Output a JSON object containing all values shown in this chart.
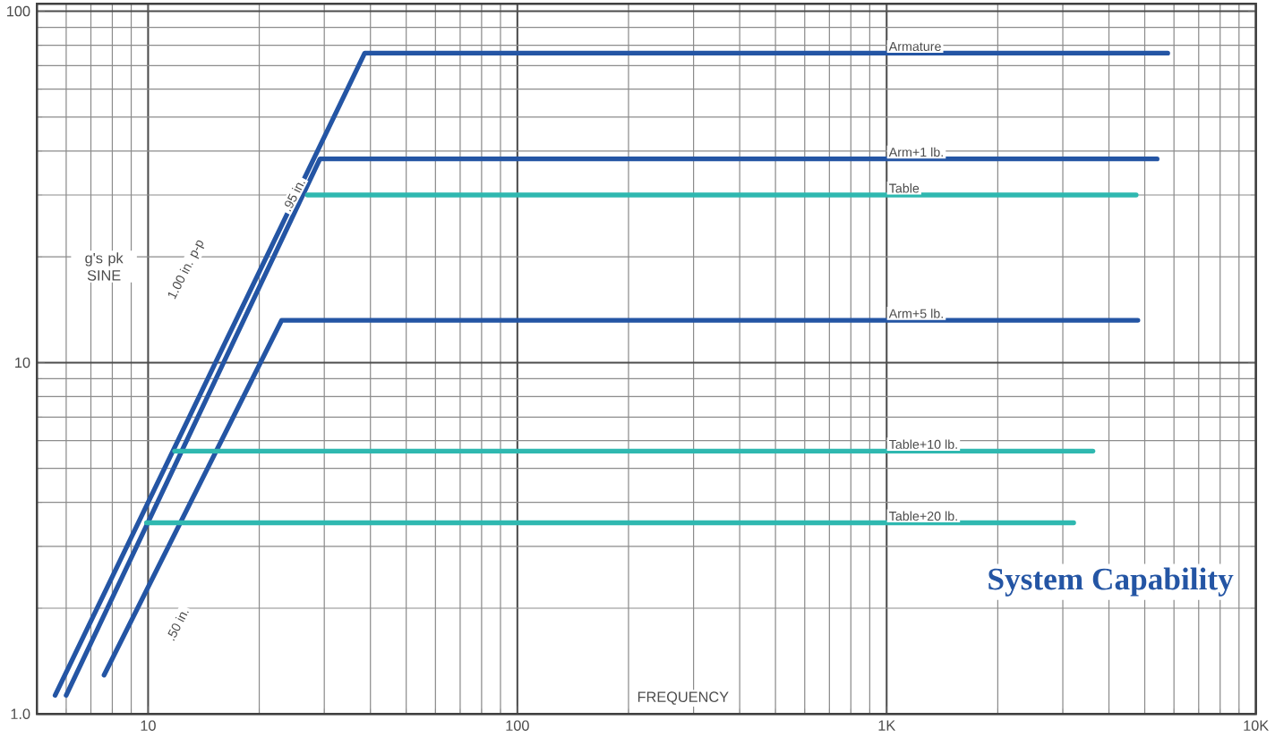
{
  "chart_data": {
    "type": "line",
    "title": "System Capability",
    "xlabel": "FREQUENCY",
    "ylabel": "g's pk SINE",
    "log": "xy",
    "grid": true,
    "marker": "none",
    "line_style": "solid",
    "xlim": [
      5,
      10000
    ],
    "ylim": [
      1,
      105
    ],
    "xticks": [
      10,
      100,
      {
        "value": 1000,
        "label": "1K"
      },
      {
        "value": 10000,
        "label": "10K"
      }
    ],
    "yticks": [
      {
        "value": 1,
        "label": "1.0"
      },
      10,
      100
    ],
    "series": [
      {
        "name": "Armature",
        "color": "#2455a4",
        "x": [
          5.6,
          38.6,
          5770
        ],
        "values": [
          1.13,
          76,
          76
        ]
      },
      {
        "name": "Arm+1 lb.",
        "color": "#2455a4",
        "x": [
          6.0,
          29.2,
          5400
        ],
        "values": [
          1.13,
          38,
          38
        ]
      },
      {
        "name": "Table",
        "color": "#2fb8b0",
        "x": [
          27,
          4740
        ],
        "values": [
          30,
          30
        ]
      },
      {
        "name": "Arm+5 lb.",
        "color": "#2455a4",
        "x": [
          7.6,
          23,
          4790
        ],
        "values": [
          1.29,
          13.2,
          13.2
        ]
      },
      {
        "name": "Table+10 lb.",
        "color": "#2fb8b0",
        "x": [
          11.8,
          3620
        ],
        "values": [
          5.6,
          5.6
        ]
      },
      {
        "name": "Table+20 lb.",
        "color": "#2fb8b0",
        "x": [
          9.9,
          3210
        ],
        "values": [
          3.5,
          3.5
        ]
      }
    ],
    "annotations": [
      {
        "text": "1.00 in. p-p",
        "x": 12.7,
        "y": 18.4
      },
      {
        "text": ".95 in.",
        "x": 24.8,
        "y": 30
      },
      {
        "text": ".50 in.",
        "x": 12,
        "y": 1.8
      }
    ]
  }
}
